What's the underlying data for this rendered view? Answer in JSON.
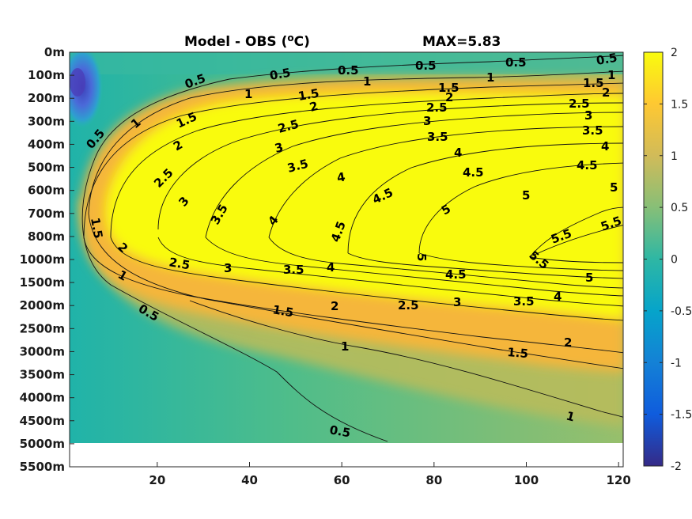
{
  "figure": {
    "title_left": "Model - OBS (",
    "title_unit_sup": "o",
    "title_unit_after": "C)",
    "title_right": "MAX=5.83"
  },
  "chart_data": {
    "type": "heatmap",
    "subtype": "filled contour with labeled contour lines",
    "title": "Model - OBS (oC)",
    "annotation": "MAX=5.83",
    "max_value": 5.83,
    "xlim": [
      1,
      121
    ],
    "x_ticks": [
      20,
      40,
      60,
      80,
      100,
      120
    ],
    "y_ticks": [
      "0m",
      "100m",
      "200m",
      "300m",
      "400m",
      "500m",
      "600m",
      "700m",
      "800m",
      "1000m",
      "1500m",
      "2000m",
      "2500m",
      "3000m",
      "3500m",
      "4000m",
      "4500m",
      "5000m",
      "5500m"
    ],
    "y_scale": "nonuniform depth levels (top = 0m)",
    "data_bottom_depth": "5000m",
    "colorbar": {
      "colormap": "parula",
      "clim": [
        -2,
        2
      ],
      "ticks": [
        "2",
        "1.5",
        "1",
        "0.5",
        "0",
        "-0.5",
        "-1",
        "-1.5",
        "-2"
      ]
    },
    "contour_levels": [
      0.5,
      1,
      1.5,
      2,
      2.5,
      3,
      3.5,
      4,
      4.5,
      5,
      5.5
    ],
    "contour_labels": [
      {
        "text": "0.5",
        "x": 28,
        "depth": "150m"
      },
      {
        "text": "0.5",
        "x": 46,
        "depth": "100m"
      },
      {
        "text": "0.5",
        "x": 60,
        "depth": "75m"
      },
      {
        "text": "0.5",
        "x": 78,
        "depth": "50m"
      },
      {
        "text": "0.5",
        "x": 96,
        "depth": "50m"
      },
      {
        "text": "0.5",
        "x": 118,
        "depth": "50m"
      },
      {
        "text": "0.5",
        "x": 8,
        "depth": "400m"
      },
      {
        "text": "0.5",
        "x": 18,
        "depth": "2200m"
      },
      {
        "text": "0.5",
        "x": 58,
        "depth": "4900m"
      },
      {
        "text": "1",
        "x": 39,
        "depth": "180m"
      },
      {
        "text": "1",
        "x": 66,
        "depth": "125m"
      },
      {
        "text": "1",
        "x": 92,
        "depth": "100m"
      },
      {
        "text": "1",
        "x": 119,
        "depth": "100m"
      },
      {
        "text": "1",
        "x": 16,
        "depth": "300m"
      },
      {
        "text": "1",
        "x": 12,
        "depth": "1700m"
      },
      {
        "text": "1",
        "x": 58,
        "depth": "3250m"
      },
      {
        "text": "1",
        "x": 108,
        "depth": "4400m"
      },
      {
        "text": "1.5",
        "x": 51,
        "depth": "180m"
      },
      {
        "text": "1.5",
        "x": 82,
        "depth": "150m"
      },
      {
        "text": "1.5",
        "x": 114,
        "depth": "150m"
      },
      {
        "text": "1.5",
        "x": 26,
        "depth": "300m"
      },
      {
        "text": "1.5",
        "x": 7,
        "depth": "800m"
      },
      {
        "text": "1.5",
        "x": 46,
        "depth": "2300m"
      },
      {
        "text": "1.5",
        "x": 97,
        "depth": "3100m"
      },
      {
        "text": "2",
        "x": 52,
        "depth": "250m"
      },
      {
        "text": "2",
        "x": 84,
        "depth": "200m"
      },
      {
        "text": "2",
        "x": 118,
        "depth": "200m"
      },
      {
        "text": "2",
        "x": 25,
        "depth": "400m"
      },
      {
        "text": "2",
        "x": 12,
        "depth": "900m"
      },
      {
        "text": "2",
        "x": 56,
        "depth": "2200m"
      },
      {
        "text": "2",
        "x": 107,
        "depth": "2950m"
      },
      {
        "text": "2.5",
        "x": 48,
        "depth": "300m"
      },
      {
        "text": "2.5",
        "x": 81,
        "depth": "250m"
      },
      {
        "text": "2.5",
        "x": 113,
        "depth": "250m"
      },
      {
        "text": "2.5",
        "x": 22,
        "depth": "550m"
      },
      {
        "text": "2.5",
        "x": 24,
        "depth": "1050m"
      },
      {
        "text": "2.5",
        "x": 73,
        "depth": "2200m"
      },
      {
        "text": "3",
        "x": 46,
        "depth": "400m"
      },
      {
        "text": "3",
        "x": 80,
        "depth": "300m"
      },
      {
        "text": "3",
        "x": 118,
        "depth": "300m"
      },
      {
        "text": "3",
        "x": 26,
        "depth": "650m"
      },
      {
        "text": "3",
        "x": 32,
        "depth": "750m"
      },
      {
        "text": "3",
        "x": 35,
        "depth": "1100m"
      },
      {
        "text": "3",
        "x": 87,
        "depth": "2050m"
      },
      {
        "text": "3.5",
        "x": 79,
        "depth": "400m"
      },
      {
        "text": "3.5",
        "x": 115,
        "depth": "350m"
      },
      {
        "text": "3.5",
        "x": 50,
        "depth": "500m"
      },
      {
        "text": "3.5",
        "x": 34,
        "depth": "750m"
      },
      {
        "text": "3.5",
        "x": 49,
        "depth": "1100m"
      },
      {
        "text": "3.5",
        "x": 102,
        "depth": "2050m"
      },
      {
        "text": "4",
        "x": 59,
        "depth": "550m"
      },
      {
        "text": "4",
        "x": 84,
        "depth": "450m"
      },
      {
        "text": "4",
        "x": 117,
        "depth": "450m"
      },
      {
        "text": "4",
        "x": 45,
        "depth": "750m"
      },
      {
        "text": "4",
        "x": 59,
        "depth": "1050m"
      },
      {
        "text": "4",
        "x": 108,
        "depth": "1900m"
      },
      {
        "text": "4.5",
        "x": 88,
        "depth": "550m"
      },
      {
        "text": "4.5",
        "x": 113,
        "depth": "500m"
      },
      {
        "text": "4.5",
        "x": 71,
        "depth": "650m"
      },
      {
        "text": "4.5",
        "x": 59,
        "depth": "800m"
      },
      {
        "text": "4.5",
        "x": 85,
        "depth": "1300m"
      },
      {
        "text": "5",
        "x": 79,
        "depth": "750m"
      },
      {
        "text": "5",
        "x": 95,
        "depth": "600m"
      },
      {
        "text": "5",
        "x": 119,
        "depth": "600m"
      },
      {
        "text": "5",
        "x": 80,
        "depth": "1000m"
      },
      {
        "text": "5",
        "x": 114,
        "depth": "1400m"
      },
      {
        "text": "5.5",
        "x": 108,
        "depth": "850m"
      },
      {
        "text": "5.5",
        "x": 120,
        "depth": "750m"
      },
      {
        "text": "5.5",
        "x": 104,
        "depth": "1000m"
      }
    ],
    "field_description": "Warm anomaly (>2 C) occupying most of the upper ocean interior east of x~25, from ~150m to ~2000m; cold anomaly (~-1.5) near x=1-10 at 50-300m; values ~0-0.5 in the west and deep layers"
  }
}
